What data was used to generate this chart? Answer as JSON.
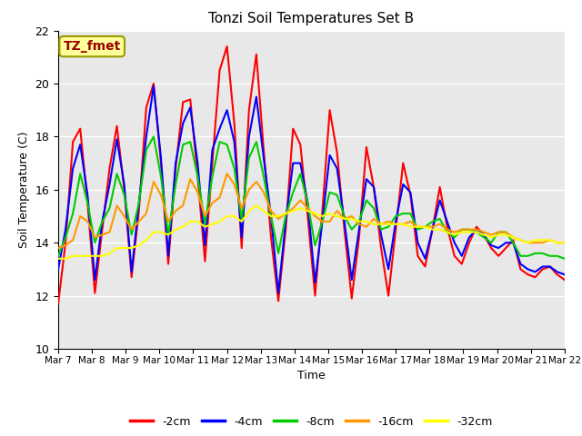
{
  "title": "Tonzi Soil Temperatures Set B",
  "xlabel": "Time",
  "ylabel": "Soil Temperature (C)",
  "ylim": [
    10,
    22
  ],
  "yticks": [
    10,
    12,
    14,
    16,
    18,
    20,
    22
  ],
  "annotation_text": "TZ_fmet",
  "annotation_box_color": "#FFFF99",
  "annotation_box_edge": "#999900",
  "annotation_text_color": "#990000",
  "bg_color": "#E8E8E8",
  "series_colors": {
    "-2cm": "#FF0000",
    "-4cm": "#0000FF",
    "-8cm": "#00CC00",
    "-16cm": "#FF9900",
    "-32cm": "#FFFF00"
  },
  "series_linewidth": 1.5,
  "x_labels": [
    "Mar 7",
    "Mar 8",
    "Mar 9",
    "Mar 10",
    "Mar 11",
    "Mar 12",
    "Mar 13",
    "Mar 14",
    "Mar 15",
    "Mar 16",
    "Mar 17",
    "Mar 18",
    "Mar 19",
    "Mar 20",
    "Mar 21",
    "Mar 22"
  ],
  "data": {
    "-2cm": [
      11.7,
      14.0,
      17.8,
      18.3,
      15.5,
      12.1,
      14.5,
      16.8,
      18.4,
      16.0,
      12.7,
      15.2,
      19.1,
      20.0,
      17.0,
      13.2,
      16.8,
      19.3,
      19.4,
      16.5,
      13.3,
      17.0,
      20.5,
      21.4,
      18.5,
      13.8,
      19.0,
      21.1,
      17.5,
      14.2,
      11.8,
      14.5,
      18.3,
      17.7,
      15.0,
      12.0,
      15.2,
      19.0,
      17.4,
      14.5,
      11.9,
      14.2,
      17.6,
      16.1,
      13.8,
      12.0,
      14.5,
      17.0,
      15.8,
      13.5,
      13.1,
      14.5,
      16.1,
      14.6,
      13.5,
      13.2,
      14.0,
      14.6,
      14.3,
      13.8,
      13.5,
      13.8,
      14.1,
      13.0,
      12.8,
      12.7,
      13.0,
      13.1,
      12.8,
      12.6
    ],
    "-4cm": [
      13.0,
      14.5,
      16.8,
      17.7,
      15.8,
      12.6,
      14.8,
      16.2,
      17.9,
      16.2,
      12.9,
      15.5,
      18.0,
      19.9,
      17.2,
      13.5,
      17.0,
      18.5,
      19.1,
      17.0,
      13.9,
      17.5,
      18.3,
      19.0,
      17.8,
      14.2,
      18.0,
      19.5,
      17.2,
      15.0,
      12.1,
      14.8,
      17.0,
      17.0,
      15.5,
      12.5,
      14.8,
      17.3,
      16.8,
      14.8,
      12.6,
      14.5,
      16.4,
      16.1,
      14.3,
      13.0,
      14.8,
      16.2,
      15.9,
      14.0,
      13.4,
      14.5,
      15.6,
      14.8,
      14.0,
      13.5,
      14.2,
      14.5,
      14.3,
      13.9,
      13.8,
      14.0,
      14.0,
      13.2,
      13.0,
      12.9,
      13.1,
      13.1,
      12.9,
      12.8
    ],
    "-8cm": [
      13.5,
      14.2,
      15.1,
      16.6,
      15.5,
      14.0,
      14.8,
      15.3,
      16.6,
      15.8,
      14.3,
      15.5,
      17.5,
      18.0,
      16.5,
      14.3,
      16.2,
      17.7,
      17.8,
      16.5,
      14.7,
      16.5,
      17.8,
      17.7,
      16.8,
      14.9,
      17.2,
      17.8,
      16.5,
      15.0,
      13.6,
      15.0,
      15.9,
      16.6,
      15.5,
      13.9,
      14.8,
      15.9,
      15.8,
      15.0,
      14.5,
      14.8,
      15.6,
      15.3,
      14.5,
      14.6,
      15.0,
      15.1,
      15.1,
      14.5,
      14.6,
      14.8,
      14.9,
      14.4,
      14.2,
      14.5,
      14.5,
      14.4,
      14.2,
      14.0,
      14.4,
      14.4,
      14.0,
      13.5,
      13.5,
      13.6,
      13.6,
      13.5,
      13.5,
      13.4
    ],
    "-16cm": [
      13.8,
      13.9,
      14.1,
      15.0,
      14.8,
      14.2,
      14.3,
      14.4,
      15.4,
      15.0,
      14.5,
      14.8,
      15.1,
      16.3,
      15.8,
      14.8,
      15.2,
      15.4,
      16.4,
      15.9,
      15.0,
      15.5,
      15.7,
      16.6,
      16.2,
      15.3,
      16.0,
      16.3,
      15.9,
      15.2,
      14.9,
      15.1,
      15.3,
      15.6,
      15.3,
      15.0,
      14.8,
      14.8,
      15.2,
      14.9,
      15.0,
      14.7,
      14.6,
      14.9,
      14.7,
      14.8,
      14.7,
      14.7,
      14.8,
      14.6,
      14.6,
      14.6,
      14.7,
      14.5,
      14.4,
      14.5,
      14.5,
      14.5,
      14.4,
      14.3,
      14.4,
      14.4,
      14.2,
      14.1,
      14.0,
      14.0,
      14.0,
      14.1,
      14.0,
      14.0
    ],
    "-32cm": [
      13.4,
      13.4,
      13.5,
      13.5,
      13.5,
      13.5,
      13.5,
      13.6,
      13.8,
      13.8,
      13.8,
      13.9,
      14.1,
      14.4,
      14.4,
      14.3,
      14.5,
      14.6,
      14.8,
      14.8,
      14.6,
      14.7,
      14.8,
      15.0,
      15.0,
      14.8,
      15.2,
      15.4,
      15.2,
      15.0,
      15.0,
      15.1,
      15.2,
      15.3,
      15.2,
      15.1,
      15.0,
      15.1,
      15.0,
      14.9,
      14.9,
      14.8,
      14.8,
      14.7,
      14.7,
      14.7,
      14.7,
      14.7,
      14.6,
      14.6,
      14.6,
      14.5,
      14.5,
      14.4,
      14.3,
      14.4,
      14.4,
      14.4,
      14.3,
      14.2,
      14.3,
      14.3,
      14.2,
      14.1,
      14.0,
      14.1,
      14.1,
      14.1,
      14.0,
      14.0
    ]
  }
}
